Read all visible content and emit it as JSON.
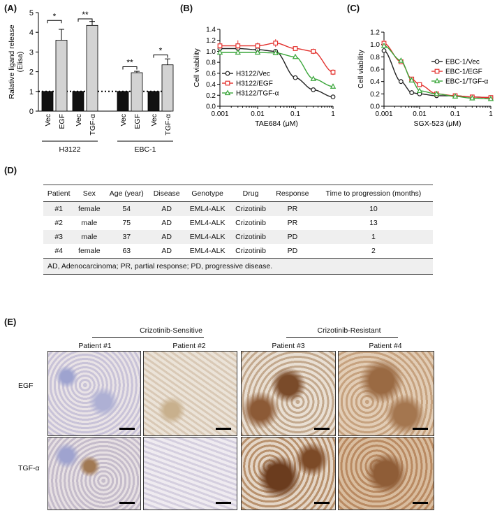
{
  "panels": {
    "a": "(A)",
    "b": "(B)",
    "c": "(C)",
    "d": "(D)",
    "e": "(E)"
  },
  "chart_data": [
    {
      "type": "bar",
      "ylabel": "Ralative ligand release (Elisa)",
      "ylim": [
        0,
        5
      ],
      "yticks": [
        "0",
        "1",
        "2",
        "3",
        "4",
        "5"
      ],
      "groups": [
        "H3122",
        "EBC-1"
      ],
      "categories": [
        "Vec",
        "EGF",
        "Vec",
        "TGF-α",
        "Vec",
        "EGF",
        "Vec",
        "TGF-α"
      ],
      "values": [
        1.0,
        3.6,
        1.0,
        4.35,
        1.0,
        1.95,
        1.0,
        2.35
      ],
      "errors": [
        0.02,
        0.55,
        0.02,
        0.2,
        0.02,
        0.07,
        0.02,
        0.3
      ],
      "colors": [
        "#111111",
        "#d3d3d3",
        "#111111",
        "#d3d3d3",
        "#111111",
        "#d3d3d3",
        "#111111",
        "#d3d3d3"
      ],
      "significance": [
        "*",
        "**",
        "**",
        "*"
      ],
      "reference_line": 1
    },
    {
      "type": "line",
      "xlabel": "TAE684 (μM)",
      "ylabel": "Cell viability",
      "xscale": "log",
      "xlim": [
        0.001,
        1
      ],
      "ylim": [
        0,
        1.4
      ],
      "xticks": [
        "0.001",
        "0.01",
        "0.1",
        "1"
      ],
      "yticks": [
        "0.0",
        "0.2",
        "0.4",
        "0.6",
        "0.8",
        "1.0",
        "1.2",
        "1.4"
      ],
      "legend": "top-left",
      "series": [
        {
          "name": "H3122/Vec",
          "color": "#222222",
          "marker": "circle",
          "x": [
            0.001,
            0.003,
            0.01,
            0.03,
            0.1,
            0.3,
            1
          ],
          "y": [
            1.05,
            1.05,
            1.03,
            1.0,
            0.52,
            0.3,
            0.17
          ],
          "err": [
            0.05,
            0.05,
            0.04,
            0.03,
            0.03,
            0.02,
            0.02
          ]
        },
        {
          "name": "H3122/EGF",
          "color": "#e3312d",
          "marker": "square",
          "x": [
            0.001,
            0.003,
            0.01,
            0.03,
            0.1,
            0.3,
            1
          ],
          "y": [
            1.1,
            1.1,
            1.1,
            1.15,
            1.05,
            1.0,
            0.62
          ],
          "err": [
            0.06,
            0.1,
            0.06,
            0.07,
            0.04,
            0.05,
            0.05
          ]
        },
        {
          "name": "H3122/TGF-α",
          "color": "#3aa63a",
          "marker": "triangle",
          "x": [
            0.001,
            0.003,
            0.01,
            0.03,
            0.1,
            0.3,
            1
          ],
          "y": [
            0.98,
            0.98,
            0.98,
            0.97,
            0.9,
            0.5,
            0.36
          ],
          "err": [
            0.04,
            0.03,
            0.03,
            0.04,
            0.04,
            0.04,
            0.03
          ]
        }
      ]
    },
    {
      "type": "line",
      "xlabel": "SGX-523 (μM)",
      "ylabel": "Cell viability",
      "xscale": "log",
      "xlim": [
        0.001,
        1
      ],
      "ylim": [
        0,
        1.2
      ],
      "xticks": [
        "0.001",
        "0.01",
        "0.1",
        "1"
      ],
      "yticks": [
        "0.0",
        "0.2",
        "0.4",
        "0.6",
        "0.8",
        "1.0",
        "1.2"
      ],
      "legend": "top-right",
      "series": [
        {
          "name": "EBC-1/Vec",
          "color": "#222222",
          "marker": "circle",
          "x": [
            0.001,
            0.003,
            0.006,
            0.01,
            0.03,
            0.1,
            0.3,
            1
          ],
          "y": [
            0.9,
            0.4,
            0.22,
            0.2,
            0.17,
            0.17,
            0.15,
            0.14
          ],
          "err": [
            0.03,
            0.04,
            0.02,
            0.02,
            0.01,
            0.01,
            0.01,
            0.01
          ]
        },
        {
          "name": "EBC-1/EGF",
          "color": "#e3312d",
          "marker": "square",
          "x": [
            0.001,
            0.003,
            0.006,
            0.01,
            0.03,
            0.1,
            0.3,
            1
          ],
          "y": [
            1.02,
            0.72,
            0.44,
            0.35,
            0.2,
            0.17,
            0.15,
            0.14
          ],
          "err": [
            0.05,
            0.04,
            0.03,
            0.02,
            0.01,
            0.01,
            0.01,
            0.01
          ]
        },
        {
          "name": "EBC-1/TGF-α",
          "color": "#3aa63a",
          "marker": "triangle",
          "x": [
            0.001,
            0.003,
            0.006,
            0.01,
            0.03,
            0.1,
            0.3,
            1
          ],
          "y": [
            0.98,
            0.74,
            0.42,
            0.25,
            0.2,
            0.16,
            0.13,
            0.12
          ],
          "err": [
            0.04,
            0.03,
            0.03,
            0.02,
            0.01,
            0.01,
            0.01,
            0.01
          ]
        }
      ]
    }
  ],
  "table": {
    "headers": [
      "Patient",
      "Sex",
      "Age (year)",
      "Disease",
      "Genotype",
      "Drug",
      "Response",
      "Time to progression (months)"
    ],
    "rows": [
      [
        "#1",
        "female",
        "54",
        "AD",
        "EML4-ALK",
        "Crizotinib",
        "PR",
        "10"
      ],
      [
        "#2",
        "male",
        "75",
        "AD",
        "EML4-ALK",
        "Crizotinib",
        "PR",
        "13"
      ],
      [
        "#3",
        "male",
        "37",
        "AD",
        "EML4-ALK",
        "Crizotinib",
        "PD",
        "1"
      ],
      [
        "#4",
        "female",
        "63",
        "AD",
        "EML4-ALK",
        "Crizotinib",
        "PD",
        "2"
      ]
    ],
    "footnote": "AD, Adenocarcinoma; PR, partial response; PD, progressive disease."
  },
  "ihc": {
    "group_sensitive": "Crizotinib-Sensitive",
    "group_resistant": "Crizotinib-Resistant",
    "patients": [
      "Patient #1",
      "Patient #2",
      "Patient #3",
      "Patient #4"
    ],
    "rows": [
      "EGF",
      "TGF-α"
    ]
  }
}
